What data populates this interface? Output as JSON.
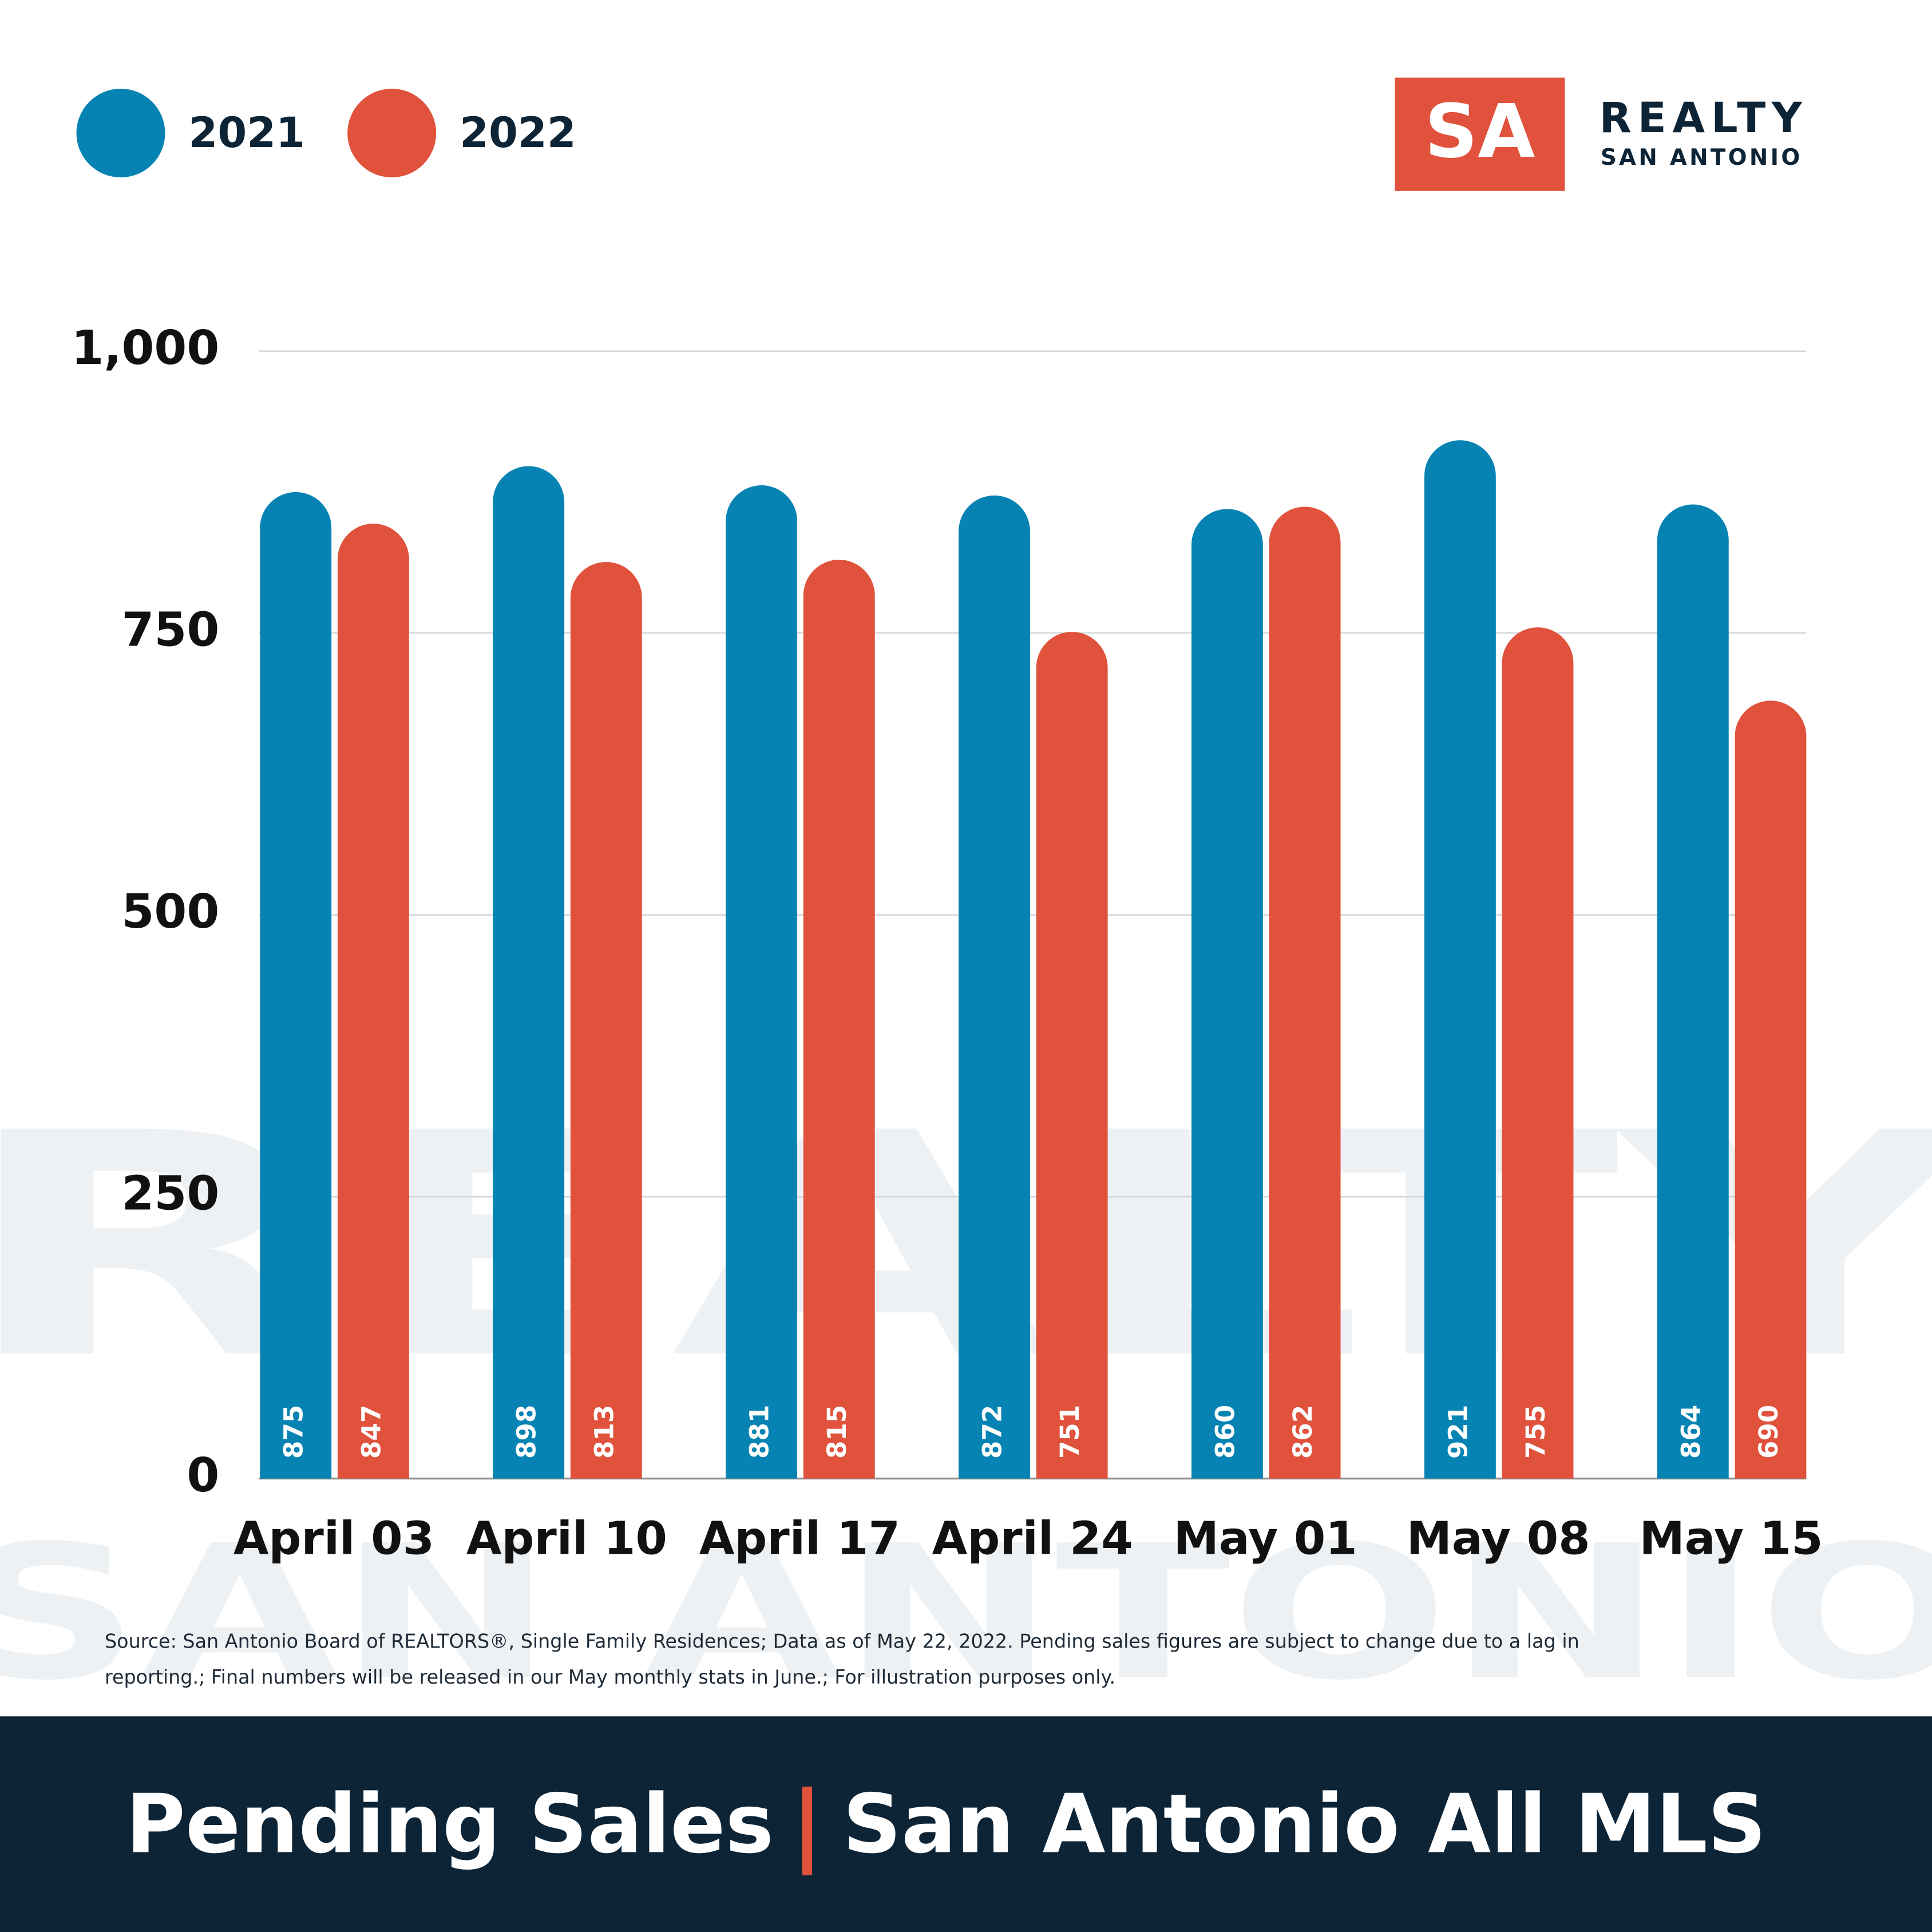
{
  "chart_data": {
    "type": "bar",
    "title": "Pending Sales",
    "subtitle": "San Antonio All MLS",
    "categories": [
      "April 03",
      "April 10",
      "April 17",
      "April 24",
      "May 01",
      "May 08",
      "May 15"
    ],
    "series": [
      {
        "name": "2021",
        "color": "#0683b2",
        "values": [
          875,
          898,
          881,
          872,
          860,
          921,
          864
        ]
      },
      {
        "name": "2022",
        "color": "#e0523c",
        "values": [
          847,
          813,
          815,
          751,
          862,
          755,
          690
        ]
      }
    ],
    "ylim": [
      0,
      1000
    ],
    "yticks": [
      0,
      250,
      500,
      750,
      {
        "value": 1000,
        "label": "1,000"
      }
    ],
    "grid": true,
    "legend": "top-left",
    "source": [
      "Source: San Antonio Board of REALTORS®, Single Family Residences; Data as of May 22, 2022. Pending sales figures are subject to change due to a lag in",
      "reporting.; Final numbers will be released in our May monthly stats in June.; For illustration purposes only."
    ]
  },
  "brand": {
    "mark": "SA",
    "name": "REALTY",
    "place": "SAN ANTONIO"
  },
  "watermark": [
    "REALTY",
    "SAN ANTONIO"
  ]
}
